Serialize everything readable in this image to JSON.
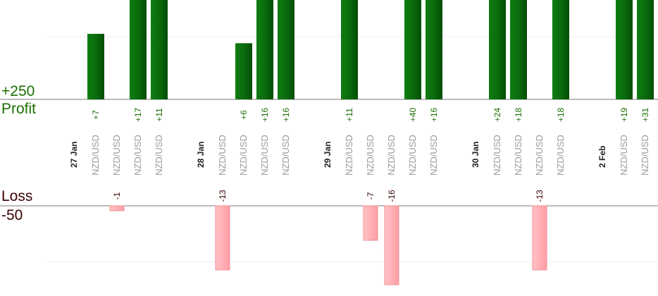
{
  "labels": {
    "profit_value": "+250",
    "profit_label": "Profit",
    "loss_label": "Loss",
    "loss_value": "-50"
  },
  "colors": {
    "profit_bar": "#0a6e0a",
    "profit_text": "#1a6e00",
    "loss_bar": "#ffb3b8",
    "loss_text": "#3a0000",
    "pair_text": "#9a9a9a"
  },
  "chart_data": {
    "type": "bar",
    "profit_scale": {
      "label": "+250",
      "value": 250
    },
    "loss_scale": {
      "label": "-50",
      "value": -50
    },
    "items": [
      {
        "kind": "date",
        "label": "27 Jan"
      },
      {
        "kind": "trade",
        "pair": "NZD/USD",
        "value": 7,
        "label": "+7"
      },
      {
        "kind": "trade",
        "pair": "NZD/USD",
        "value": -1,
        "label": "-1"
      },
      {
        "kind": "trade",
        "pair": "NZD/USD",
        "value": 17,
        "label": "+17"
      },
      {
        "kind": "trade",
        "pair": "NZD/USD",
        "value": 11,
        "label": "+11"
      },
      {
        "kind": "empty"
      },
      {
        "kind": "date",
        "label": "28 Jan"
      },
      {
        "kind": "trade",
        "pair": "NZD/USD",
        "value": -13,
        "label": "-13"
      },
      {
        "kind": "trade",
        "pair": "NZD/USD",
        "value": 6,
        "label": "+6"
      },
      {
        "kind": "trade",
        "pair": "NZD/USD",
        "value": 16,
        "label": "+16"
      },
      {
        "kind": "trade",
        "pair": "NZD/USD",
        "value": 16,
        "label": "+16"
      },
      {
        "kind": "empty"
      },
      {
        "kind": "date",
        "label": "29 Jan"
      },
      {
        "kind": "trade",
        "pair": "NZD/USD",
        "value": 11,
        "label": "+11"
      },
      {
        "kind": "trade",
        "pair": "NZD/USD",
        "value": -7,
        "label": "-7"
      },
      {
        "kind": "trade",
        "pair": "NZD/USD",
        "value": -16,
        "label": "-16"
      },
      {
        "kind": "trade",
        "pair": "NZD/USD",
        "value": 40,
        "label": "+40"
      },
      {
        "kind": "trade",
        "pair": "NZD/USD",
        "value": 16,
        "label": "+16"
      },
      {
        "kind": "empty"
      },
      {
        "kind": "date",
        "label": "30 Jan"
      },
      {
        "kind": "trade",
        "pair": "NZD/USD",
        "value": 24,
        "label": "+24"
      },
      {
        "kind": "trade",
        "pair": "NZD/USD",
        "value": 18,
        "label": "+18"
      },
      {
        "kind": "trade",
        "pair": "NZD/USD",
        "value": -13,
        "label": "-13"
      },
      {
        "kind": "trade",
        "pair": "NZD/USD",
        "value": 18,
        "label": "+18"
      },
      {
        "kind": "empty"
      },
      {
        "kind": "date",
        "label": "2 Feb"
      },
      {
        "kind": "trade",
        "pair": "NZD/USD",
        "value": 19,
        "label": "+19"
      },
      {
        "kind": "trade",
        "pair": "NZD/USD",
        "value": 31,
        "label": "+31"
      }
    ]
  }
}
